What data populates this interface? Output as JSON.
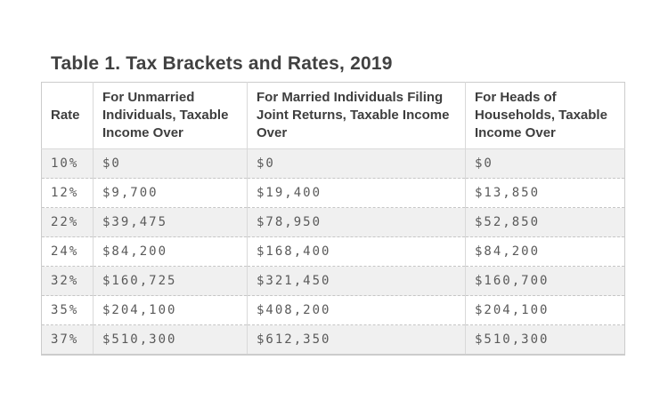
{
  "title": "Table 1. Tax Brackets and Rates, 2019",
  "table": {
    "columns": [
      "Rate",
      "For Unmarried Individuals, Taxable Income Over",
      "For Married Individuals Filing Joint Returns, Taxable Income Over",
      "For Heads of Households, Taxable Income Over"
    ],
    "rows": [
      [
        "10%",
        "$0",
        "$0",
        "$0"
      ],
      [
        "12%",
        "$9,700",
        "$19,400",
        "$13,850"
      ],
      [
        "22%",
        "$39,475",
        "$78,950",
        "$52,850"
      ],
      [
        "24%",
        "$84,200",
        "$168,400",
        "$84,200"
      ],
      [
        "32%",
        "$160,725",
        "$321,450",
        "$160,700"
      ],
      [
        "35%",
        "$204,100",
        "$408,200",
        "$204,100"
      ],
      [
        "37%",
        "$510,300",
        "$612,350",
        "$510,300"
      ]
    ]
  },
  "colors": {
    "page_background": "#ffffff",
    "stripe_row": "#f0f0f0",
    "border": "#d9d9d9",
    "outer_border": "#cccccc",
    "title_text": "#414141",
    "header_text": "#3e3e3e",
    "cell_text": "#5a5a5a"
  }
}
